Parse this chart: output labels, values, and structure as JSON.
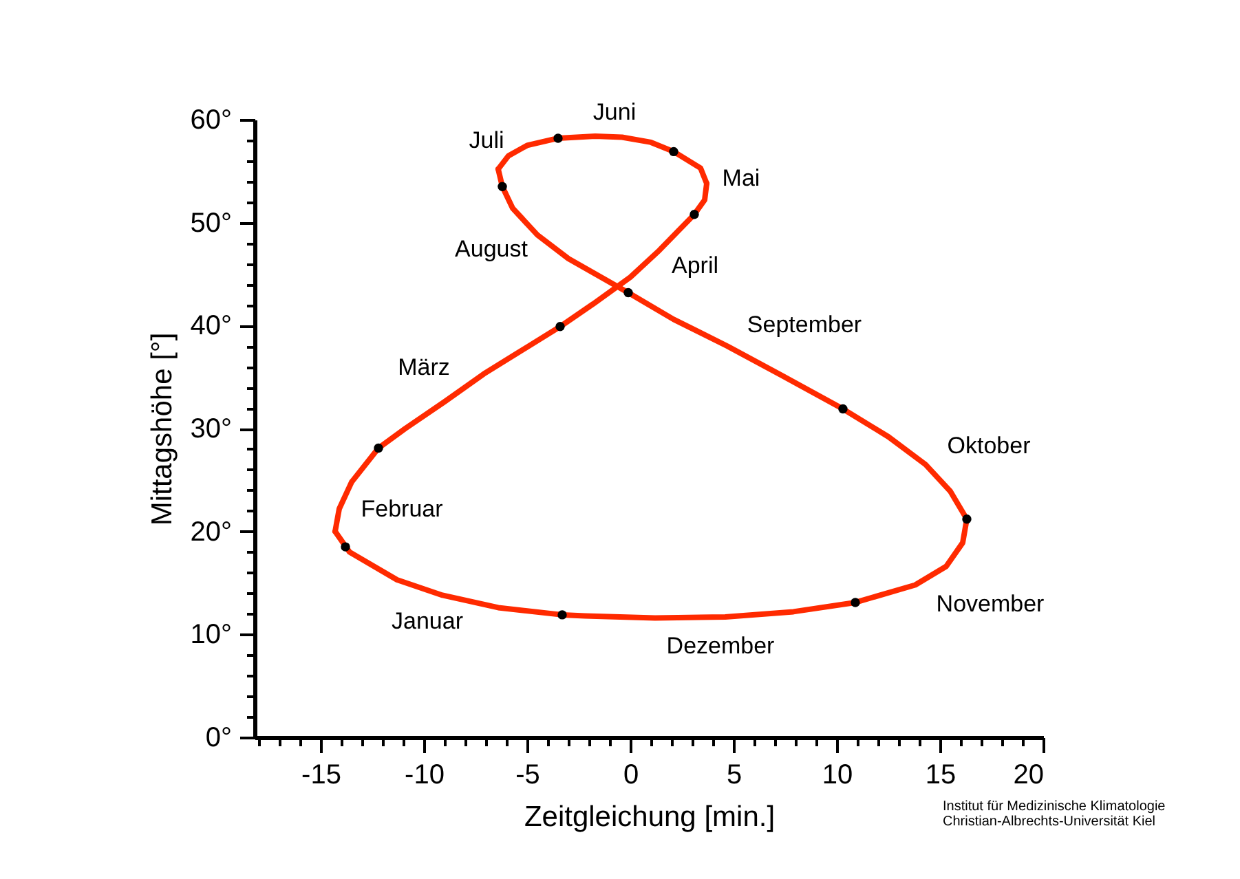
{
  "chart_data": {
    "type": "line",
    "xlabel": "Zeitgleichung [min.]",
    "ylabel": "Mittagshöhe [°]",
    "xlim": [
      -18.2,
      20
    ],
    "ylim": [
      0,
      60
    ],
    "xticks": [
      {
        "value": -18,
        "label": null
      },
      {
        "value": -17,
        "label": null
      },
      {
        "value": -16,
        "label": null
      },
      -15,
      {
        "value": -14,
        "label": null
      },
      {
        "value": -13,
        "label": null
      },
      {
        "value": -12,
        "label": null
      },
      {
        "value": -11,
        "label": null
      },
      -10,
      {
        "value": -9,
        "label": null
      },
      {
        "value": -8,
        "label": null
      },
      {
        "value": -7,
        "label": null
      },
      {
        "value": -6,
        "label": null
      },
      -5,
      {
        "value": -4,
        "label": null
      },
      {
        "value": -3,
        "label": null
      },
      {
        "value": -2,
        "label": null
      },
      {
        "value": -1,
        "label": null
      },
      0,
      {
        "value": 1,
        "label": null
      },
      {
        "value": 2,
        "label": null
      },
      {
        "value": 3,
        "label": null
      },
      {
        "value": 4,
        "label": null
      },
      5,
      {
        "value": 6,
        "label": null
      },
      {
        "value": 7,
        "label": null
      },
      {
        "value": 8,
        "label": null
      },
      {
        "value": 9,
        "label": null
      },
      10,
      {
        "value": 11,
        "label": null
      },
      {
        "value": 12,
        "label": null
      },
      {
        "value": 13,
        "label": null
      },
      {
        "value": 14,
        "label": null
      },
      15,
      {
        "value": 16,
        "label": null
      },
      {
        "value": 17,
        "label": null
      },
      {
        "value": 18,
        "label": null
      },
      {
        "value": 19,
        "label": null
      },
      20
    ],
    "yticks": [
      {
        "value": 0,
        "label": "0°"
      },
      {
        "value": 2,
        "label": null
      },
      {
        "value": 4,
        "label": null
      },
      {
        "value": 6,
        "label": null
      },
      {
        "value": 8,
        "label": null
      },
      {
        "value": 10,
        "label": "10°"
      },
      {
        "value": 12,
        "label": null
      },
      {
        "value": 14,
        "label": null
      },
      {
        "value": 16,
        "label": null
      },
      {
        "value": 18,
        "label": null
      },
      {
        "value": 20,
        "label": "20°"
      },
      {
        "value": 22,
        "label": null
      },
      {
        "value": 24,
        "label": null
      },
      {
        "value": 26,
        "label": null
      },
      {
        "value": 28,
        "label": null
      },
      {
        "value": 30,
        "label": "30°"
      },
      {
        "value": 32,
        "label": null
      },
      {
        "value": 34,
        "label": null
      },
      {
        "value": 36,
        "label": null
      },
      {
        "value": 38,
        "label": null
      },
      {
        "value": 40,
        "label": "40°"
      },
      {
        "value": 42,
        "label": null
      },
      {
        "value": 44,
        "label": null
      },
      {
        "value": 46,
        "label": null
      },
      {
        "value": 48,
        "label": null
      },
      {
        "value": 50,
        "label": "50°"
      },
      {
        "value": 52,
        "label": null
      },
      {
        "value": 54,
        "label": null
      },
      {
        "value": 56,
        "label": null
      },
      {
        "value": 58,
        "label": null
      },
      {
        "value": 60,
        "label": "60°"
      }
    ],
    "grid": false,
    "series": [
      {
        "type": "line",
        "color": "#ff2a00",
        "marker": "none",
        "line_style": "solid",
        "x": [
          -3.3,
          -6.4,
          -9.1,
          -11.3,
          -13.6,
          -14.3
        ],
        "values": [
          11.9,
          12.6,
          13.8,
          15.3,
          18.0,
          20.0
        ]
      },
      {
        "type": "line",
        "color": "#ff2a00",
        "marker": "none",
        "line_style": "solid",
        "x": [
          -14.3,
          -14.1,
          -13.5,
          -12.2,
          -10.9,
          -9.0,
          -7.1,
          -3.4,
          -1.8,
          0.0,
          1.4,
          3.1,
          3.6,
          3.7
        ],
        "values": [
          20.0,
          22.2,
          24.8,
          28.1,
          30.0,
          32.6,
          35.3,
          39.9,
          42.1,
          44.7,
          47.3,
          50.8,
          52.2,
          53.8
        ]
      },
      {
        "type": "line",
        "color": "#ff2a00",
        "marker": "none",
        "line_style": "solid",
        "x": [
          3.7,
          3.4,
          2.1,
          1.0,
          -0.4,
          -1.7,
          -3.5,
          -5.0,
          -5.9,
          -6.4
        ],
        "values": [
          53.8,
          55.3,
          56.9,
          57.8,
          58.3,
          58.4,
          58.2,
          57.5,
          56.5,
          55.2
        ]
      },
      {
        "type": "line",
        "color": "#ff2a00",
        "marker": "none",
        "line_style": "solid",
        "x": [
          -6.4,
          -6.2,
          -5.7,
          -4.5,
          -3.0,
          -0.1,
          2.1,
          4.7,
          7.3,
          10.3,
          12.5,
          14.3,
          15.5,
          16.3
        ],
        "values": [
          55.2,
          53.5,
          51.4,
          48.8,
          46.5,
          43.2,
          40.6,
          38.0,
          35.2,
          31.9,
          29.2,
          26.5,
          23.9,
          21.2
        ]
      },
      {
        "type": "line",
        "color": "#ff2a00",
        "marker": "none",
        "line_style": "solid",
        "x": [
          16.3,
          16.1,
          15.3,
          13.8,
          10.9,
          7.9,
          4.6,
          1.2,
          -2.2,
          -3.3
        ],
        "values": [
          21.2,
          18.9,
          16.6,
          14.8,
          13.1,
          12.2,
          11.7,
          11.6,
          11.8,
          11.9
        ]
      },
      {
        "type": "scatter",
        "color": "#000000",
        "marker": "circle",
        "x": [
          -3.3,
          -13.8,
          -12.2,
          -3.4,
          3.1,
          2.1,
          -3.5,
          -6.2,
          -0.1,
          10.3,
          16.3,
          10.9
        ],
        "values": [
          11.9,
          18.5,
          28.1,
          39.9,
          50.8,
          56.9,
          58.2,
          53.5,
          43.2,
          31.9,
          21.2,
          13.1
        ]
      }
    ],
    "annotations": [
      "Januar",
      "Februar",
      "März",
      "April",
      "Mai",
      "Juni",
      "Juli",
      "August",
      "September",
      "Oktober",
      "November",
      "Dezember",
      "Institut für Medizinische Klimatologie",
      "Christian-Albrechts-Universität Kiel"
    ]
  }
}
